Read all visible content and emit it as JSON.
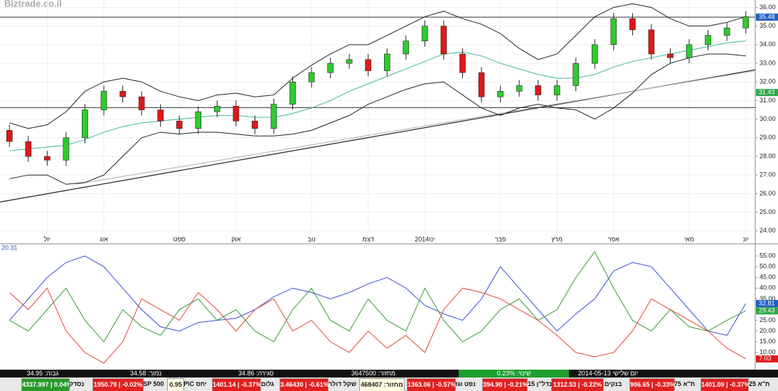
{
  "watermark": "Biztrade.co.il",
  "chart_data": [
    {
      "type": "candlestick",
      "categories": [
        null,
        null,
        "יול",
        null,
        null,
        "אוג",
        null,
        null,
        null,
        "ספט",
        null,
        null,
        "אוק",
        null,
        null,
        null,
        "נוב",
        null,
        null,
        "דצמ",
        null,
        null,
        "2014ינו",
        null,
        null,
        null,
        "פבר",
        null,
        null,
        "מרץ",
        null,
        null,
        "אפר",
        null,
        null,
        null,
        "מאי",
        null,
        null,
        "יונ"
      ],
      "open": [
        29.4,
        28.8,
        28.0,
        27.8,
        29.0,
        30.5,
        31.5,
        31.2,
        30.5,
        29.9,
        29.5,
        30.4,
        30.7,
        29.9,
        29.5,
        30.8,
        32.0,
        32.5,
        33.0,
        33.2,
        32.6,
        33.5,
        34.2,
        35.0,
        33.5,
        32.5,
        31.2,
        31.5,
        31.8,
        31.3,
        31.8,
        33.0,
        34.0,
        35.4,
        34.8,
        33.5,
        33.3,
        34.0,
        34.5,
        34.9
      ],
      "high": [
        29.7,
        29.1,
        28.3,
        29.3,
        30.8,
        31.8,
        31.8,
        31.5,
        30.8,
        30.2,
        30.7,
        31.0,
        31.0,
        30.2,
        31.1,
        32.3,
        32.8,
        33.3,
        33.5,
        33.5,
        33.8,
        34.5,
        35.3,
        35.3,
        33.8,
        32.8,
        31.8,
        32.1,
        32.1,
        32.1,
        33.3,
        34.3,
        35.7,
        35.7,
        35.1,
        33.8,
        34.3,
        34.8,
        35.2,
        35.8
      ],
      "low": [
        28.5,
        27.7,
        27.5,
        27.5,
        28.7,
        30.2,
        30.9,
        30.2,
        29.6,
        29.2,
        29.2,
        30.1,
        29.6,
        29.2,
        29.2,
        30.5,
        31.7,
        32.2,
        32.7,
        32.3,
        32.3,
        33.2,
        33.9,
        33.2,
        32.2,
        30.9,
        30.9,
        31.2,
        31.0,
        31.0,
        31.5,
        32.7,
        33.7,
        34.5,
        33.2,
        33.0,
        33.0,
        33.7,
        34.2,
        34.6
      ],
      "close": [
        28.8,
        28.0,
        27.8,
        29.0,
        30.5,
        31.5,
        31.2,
        30.5,
        29.9,
        29.5,
        30.4,
        30.7,
        29.9,
        29.5,
        30.8,
        32.0,
        32.5,
        33.0,
        33.2,
        32.6,
        33.5,
        34.2,
        35.0,
        33.5,
        32.5,
        31.2,
        31.5,
        31.8,
        31.3,
        31.8,
        33.0,
        34.0,
        35.4,
        34.8,
        33.5,
        33.3,
        34.0,
        34.5,
        34.9,
        35.5
      ],
      "up_color": "#2ecc2e",
      "down_color": "#e01818",
      "series": [
        {
          "color": "#222222",
          "values": [
            29.8,
            29.5,
            29.7,
            30.4,
            31.5,
            32.0,
            32.2,
            32.0,
            31.5,
            31.2,
            31.0,
            31.3,
            31.4,
            31.2,
            31.3,
            32.2,
            32.9,
            33.5,
            34.0,
            34.0,
            34.5,
            35.0,
            35.5,
            35.8,
            35.4,
            35.1,
            34.6,
            33.8,
            33.2,
            33.5,
            34.5,
            35.5,
            36.0,
            36.2,
            36.0,
            35.4,
            35.0,
            35.0,
            35.2,
            35.5
          ]
        },
        {
          "color": "#222222",
          "values": [
            26.8,
            27.0,
            27.0,
            26.5,
            26.6,
            27.0,
            28.0,
            29.0,
            29.3,
            29.2,
            29.3,
            29.3,
            29.2,
            29.1,
            29.1,
            29.2,
            29.4,
            29.8,
            30.2,
            30.8,
            31.2,
            31.6,
            31.9,
            32.0,
            31.3,
            30.6,
            30.2,
            30.6,
            30.8,
            30.6,
            30.5,
            30.0,
            30.6,
            31.4,
            32.4,
            33.0,
            33.3,
            33.5,
            33.5,
            33.4
          ]
        },
        {
          "color": "#3cb89a",
          "values": [
            28.3,
            28.4,
            28.5,
            28.6,
            28.9,
            29.3,
            29.6,
            29.8,
            29.9,
            30.0,
            30.1,
            30.2,
            30.2,
            30.1,
            30.1,
            30.3,
            30.6,
            31.0,
            31.5,
            31.9,
            32.3,
            32.7,
            33.1,
            33.5,
            33.6,
            33.4,
            33.0,
            32.7,
            32.4,
            32.2,
            32.2,
            32.4,
            32.8,
            33.1,
            33.3,
            33.5,
            33.7,
            33.9,
            34.1,
            34.2
          ]
        }
      ],
      "trendlines": [
        {
          "from": [
            -0.5,
            25.55
          ],
          "to": [
            39.5,
            32.65
          ],
          "color": "#222222"
        },
        {
          "from": [
            3.5,
            26.5
          ],
          "to": [
            39.5,
            32.6
          ],
          "color": "#bbbbbb"
        }
      ],
      "hlines": [
        35.48,
        30.62
      ],
      "right_labels": [
        {
          "value": 35.48,
          "color": "#1f5fc0"
        },
        {
          "value": 31.43,
          "color": "#2ea84a"
        }
      ],
      "ylim": [
        23.8,
        36.4
      ],
      "yticks": [
        {
          "value": 24,
          "label": "24.00"
        },
        {
          "value": 25,
          "label": "25.00"
        },
        {
          "value": 26,
          "label": "26.00"
        },
        {
          "value": 27,
          "label": "27.00"
        },
        {
          "value": 28,
          "label": "28.00"
        },
        {
          "value": 29,
          "label": "29.00"
        },
        {
          "value": 30,
          "label": "30.00"
        },
        {
          "value": 31,
          "label": "31.00"
        },
        {
          "value": 32,
          "label": "32.00"
        },
        {
          "value": 33,
          "label": "33.00"
        },
        {
          "value": 34,
          "label": "34.00"
        },
        {
          "value": 35,
          "label": "35.00"
        },
        {
          "value": 36,
          "label": "36.00"
        }
      ],
      "grid": true
    },
    {
      "type": "line",
      "title": "20.31",
      "series": [
        {
          "color": "#3a4fd8",
          "values": [
            25,
            35,
            45,
            52,
            55,
            50,
            40,
            30,
            22,
            20,
            24,
            25,
            26,
            30,
            36,
            40,
            38,
            35,
            38,
            42,
            45,
            40,
            32,
            28,
            25,
            35,
            50,
            40,
            30,
            20,
            28,
            35,
            48,
            52,
            50,
            40,
            30,
            20,
            18,
            32.81
          ]
        },
        {
          "color": "#3a9a3a",
          "values": [
            25,
            20,
            30,
            40,
            25,
            15,
            30,
            22,
            18,
            30,
            35,
            25,
            30,
            20,
            15,
            30,
            40,
            25,
            20,
            35,
            25,
            20,
            40,
            25,
            15,
            20,
            30,
            35,
            25,
            30,
            45,
            57,
            40,
            25,
            20,
            30,
            22,
            20,
            25,
            29.43
          ]
        },
        {
          "color": "#e04a3a",
          "values": [
            38,
            30,
            40,
            20,
            10,
            5,
            15,
            35,
            30,
            25,
            38,
            30,
            20,
            30,
            35,
            20,
            25,
            15,
            10,
            20,
            12,
            18,
            10,
            30,
            40,
            38,
            35,
            30,
            25,
            18,
            10,
            8,
            10,
            20,
            35,
            30,
            25,
            20,
            12,
            7.03
          ]
        }
      ],
      "right_labels": [
        {
          "value": 32.81,
          "color": "#1f5fc0"
        },
        {
          "value": 29.43,
          "color": "#2ea84a"
        },
        {
          "value": 7.03,
          "color": "#e01818"
        }
      ],
      "ylim": [
        2,
        60
      ],
      "yticks": [
        {
          "value": 10,
          "label": "10.00"
        },
        {
          "value": 15,
          "label": "15.00"
        },
        {
          "value": 20,
          "label": "20.00"
        },
        {
          "value": 25,
          "label": "25.00"
        },
        {
          "value": 30,
          "label": "30.00"
        },
        {
          "value": 35,
          "label": "35.00"
        },
        {
          "value": 40,
          "label": "40.00"
        },
        {
          "value": 45,
          "label": "45.00"
        },
        {
          "value": 50,
          "label": "50.00"
        },
        {
          "value": 55,
          "label": "55.00"
        }
      ]
    }
  ],
  "info": [
    "גבוה: 34.95",
    "נמוך: 34.58",
    "סגירה: 34.86",
    "מחזור: 3647500",
    "שינוי: 0.23%",
    "יום שלישי 2014-05-13"
  ],
  "tickers": [
    {
      "value": "4337.997 | 0.04%",
      "name": "נסדק",
      "color": "#2a9a2a"
    },
    {
      "value": "1950.79 | -0.02%",
      "name": "SP 500",
      "color": "#e02020"
    },
    {
      "value": "0.95",
      "name": "יחס P\\C",
      "color": "#fffbe0"
    },
    {
      "value": "1401.14 | -0.37%",
      "name": "גלום",
      "color": "#e02020"
    },
    {
      "value": "3.46430 | -0.61%",
      "name": "שקל דולר",
      "color": "#e02020"
    },
    {
      "value": "מחזור: 468407",
      "name": null,
      "color": "#fffbe0"
    },
    {
      "value": "1363.06 | -0.57%",
      "name": "נפט וגז",
      "color": "#e02020"
    },
    {
      "value": "394.90 | -0.21%",
      "name": "נדל\"ן 15",
      "color": "#e02020"
    },
    {
      "value": "1312.53 | -0.22%",
      "name": "בנקים",
      "color": "#e02020"
    },
    {
      "value": "906.65 | -0.33%",
      "name": "ת\"א 75",
      "color": "#e02020"
    },
    {
      "value": "1401.09 | -0.37%",
      "name": "ת\"א 25",
      "color": "#e02020"
    }
  ]
}
